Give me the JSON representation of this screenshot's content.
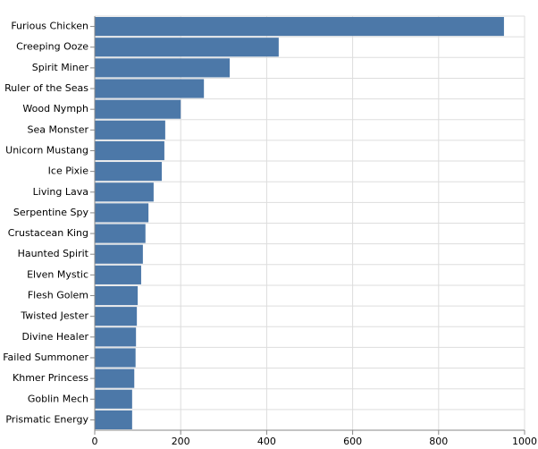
{
  "chart_data": {
    "type": "bar",
    "orientation": "horizontal",
    "categories": [
      "Furious Chicken",
      "Creeping Ooze",
      "Spirit Miner",
      "Ruler of the Seas",
      "Wood Nymph",
      "Sea Monster",
      "Unicorn Mustang",
      "Ice Pixie",
      "Living Lava",
      "Serpentine Spy",
      "Crustacean King",
      "Haunted Spirit",
      "Elven Mystic",
      "Flesh Golem",
      "Twisted Jester",
      "Divine Healer",
      "Failed Summoner",
      "Khmer Princess",
      "Goblin Mech",
      "Prismatic Energy"
    ],
    "values": [
      952,
      428,
      314,
      254,
      200,
      164,
      162,
      156,
      137,
      125,
      118,
      112,
      108,
      100,
      98,
      96,
      95,
      92,
      87,
      87
    ],
    "color": "#4c78a8",
    "xlim": [
      0,
      1000
    ],
    "xticks": [
      0,
      200,
      400,
      600,
      800,
      1000
    ],
    "grid": true
  }
}
